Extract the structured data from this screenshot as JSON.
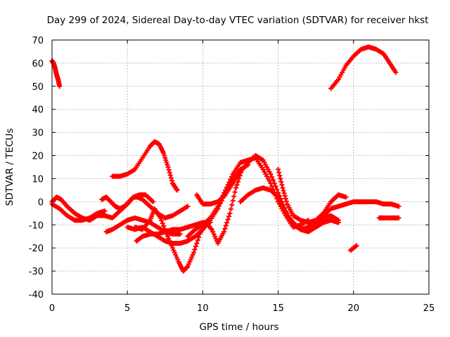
{
  "chart_data": {
    "type": "scatter",
    "title": "Day 299 of 2024, Sidereal Day-to-day VTEC variation (SDTVAR) for receiver hkst",
    "xlabel": "GPS time / hours",
    "ylabel": "SDTVAR / TECUs",
    "xlim": [
      0,
      25
    ],
    "ylim": [
      -40,
      70
    ],
    "xticks": [
      0,
      5,
      10,
      15,
      20,
      25
    ],
    "yticks": [
      -40,
      -30,
      -20,
      -10,
      0,
      10,
      20,
      30,
      40,
      50,
      60,
      70
    ],
    "grid": true,
    "marker": "plus",
    "color": "#ff0000",
    "series": [
      {
        "name": "s1",
        "x": [
          0.0,
          0.1,
          0.2,
          0.3,
          0.4,
          0.5
        ],
        "y": [
          61,
          60,
          58,
          55,
          53,
          50
        ]
      },
      {
        "name": "s2",
        "x": [
          0.0,
          0.3,
          0.6,
          1.0,
          1.5,
          2.0,
          2.5,
          3.0,
          3.5,
          4.0,
          4.5,
          5.0,
          5.4,
          5.8,
          6.2,
          6.7
        ],
        "y": [
          0,
          2,
          1,
          -2,
          -5,
          -7,
          -8,
          -6,
          -6,
          -7,
          -4,
          -1,
          2,
          3,
          3,
          0
        ]
      },
      {
        "name": "s3",
        "x": [
          0.0,
          0.5,
          1.0,
          1.5,
          2.0,
          2.5,
          3.0,
          3.5
        ],
        "y": [
          -1,
          -3,
          -6,
          -8,
          -8,
          -7,
          -5,
          -4
        ]
      },
      {
        "name": "s4",
        "x": [
          3.3,
          3.6,
          3.9,
          4.2,
          4.5,
          4.8,
          5.1,
          5.4,
          5.7,
          6.0,
          6.5,
          7.0,
          7.5,
          8.0,
          8.5,
          9.0
        ],
        "y": [
          1,
          2,
          0,
          -2,
          -3,
          -2,
          0,
          2,
          2,
          1,
          -2,
          -5,
          -7,
          -6,
          -4,
          -2
        ]
      },
      {
        "name": "s5",
        "x": [
          3.6,
          4.0,
          4.5,
          5.0,
          5.5,
          6.0,
          6.5,
          7.0,
          7.5,
          8.0,
          8.5
        ],
        "y": [
          -13,
          -12,
          -10,
          -8,
          -7,
          -8,
          -9,
          -11,
          -13,
          -14,
          -14
        ]
      },
      {
        "name": "s6",
        "x": [
          4.0,
          4.5,
          5.0,
          5.5,
          6.0,
          6.5,
          6.8,
          7.1,
          7.4,
          7.7,
          8.0,
          8.3
        ],
        "y": [
          11,
          11,
          12,
          14,
          19,
          24,
          26,
          25,
          21,
          15,
          8,
          5
        ]
      },
      {
        "name": "s7",
        "x": [
          5.0,
          5.5,
          6.0,
          6.5,
          7.0,
          7.5,
          8.0,
          8.5,
          9.0,
          9.5,
          10.0,
          10.5,
          11.0,
          11.5,
          12.0,
          12.5,
          13.0
        ],
        "y": [
          -11,
          -12,
          -11,
          -13,
          -15,
          -17,
          -18,
          -18,
          -17,
          -15,
          -12,
          -8,
          -3,
          4,
          10,
          14,
          16
        ]
      },
      {
        "name": "s8",
        "x": [
          5.5,
          6.0,
          6.5,
          6.8,
          7.2,
          7.6,
          8.0,
          8.4,
          8.7,
          9.0,
          9.4,
          9.8,
          10.2,
          10.6,
          11.0,
          11.4,
          11.8,
          12.2,
          12.6
        ],
        "y": [
          -11,
          -12,
          -8,
          -3,
          -7,
          -14,
          -20,
          -26,
          -30,
          -28,
          -22,
          -14,
          -9,
          -12,
          -18,
          -13,
          -5,
          6,
          14
        ]
      },
      {
        "name": "s9",
        "x": [
          5.6,
          6.0,
          6.5,
          7.0,
          7.5,
          8.0,
          8.5,
          9.0,
          9.5,
          10.0,
          10.5
        ],
        "y": [
          -17,
          -15,
          -14,
          -14,
          -13,
          -12,
          -12,
          -11,
          -10,
          -9,
          -9
        ]
      },
      {
        "name": "s10",
        "x": [
          9.0,
          9.5,
          10.0,
          10.5,
          11.0,
          11.5,
          12.0,
          12.5,
          13.0,
          13.5,
          14.0,
          14.5,
          15.0,
          15.5,
          16.0,
          16.5,
          17.0
        ],
        "y": [
          -15,
          -12,
          -10,
          -7,
          -2,
          5,
          12,
          17,
          18,
          19,
          14,
          8,
          0,
          -6,
          -11,
          -10,
          -8
        ]
      },
      {
        "name": "s11",
        "x": [
          9.6,
          10.0,
          10.5,
          11.0,
          11.5,
          12.0,
          12.5,
          13.0,
          13.5,
          14.0,
          14.5,
          15.0,
          15.5,
          16.0,
          16.5,
          17.0,
          17.5,
          18.0,
          18.5,
          19.0
        ],
        "y": [
          3,
          -1,
          -1,
          0,
          3,
          8,
          13,
          17,
          20,
          18,
          12,
          4,
          -4,
          -10,
          -12,
          -11,
          -9,
          -7,
          -6,
          -8
        ]
      },
      {
        "name": "s12",
        "x": [
          12.5,
          13.0,
          13.5,
          14.0,
          14.5,
          15.0,
          15.3,
          15.6,
          16.0,
          16.5,
          17.0,
          17.5,
          18.0,
          18.5,
          19.0
        ],
        "y": [
          0,
          3,
          5,
          6,
          5,
          2,
          -2,
          -6,
          -9,
          -12,
          -13,
          -11,
          -9,
          -8,
          -9
        ]
      },
      {
        "name": "s13",
        "x": [
          15.0,
          15.3,
          15.6,
          16.0,
          16.5,
          17.0,
          17.5,
          18.0,
          18.5,
          19.0,
          19.5
        ],
        "y": [
          14,
          6,
          -1,
          -6,
          -8,
          -9,
          -8,
          -5,
          0,
          3,
          2
        ]
      },
      {
        "name": "s14",
        "x": [
          17.0,
          17.5,
          18.0,
          18.5,
          19.0,
          19.5,
          20.0,
          20.5,
          21.0,
          21.5,
          22.0,
          22.5,
          23.0
        ],
        "y": [
          -11,
          -9,
          -6,
          -3,
          -2,
          -1,
          0,
          0,
          0,
          0,
          -1,
          -1,
          -2
        ]
      },
      {
        "name": "s15",
        "x": [
          18.5,
          19.0,
          19.5,
          20.0,
          20.5,
          21.0,
          21.5,
          22.0,
          22.4,
          22.8
        ],
        "y": [
          49,
          53,
          59,
          63,
          66,
          67,
          66,
          64,
          60,
          56
        ]
      },
      {
        "name": "s16",
        "x": [
          21.7,
          22.0,
          22.5,
          23.0
        ],
        "y": [
          -7,
          -7,
          -7,
          -7
        ]
      },
      {
        "name": "s17",
        "x": [
          19.8,
          20.2
        ],
        "y": [
          -21,
          -19
        ]
      }
    ]
  }
}
